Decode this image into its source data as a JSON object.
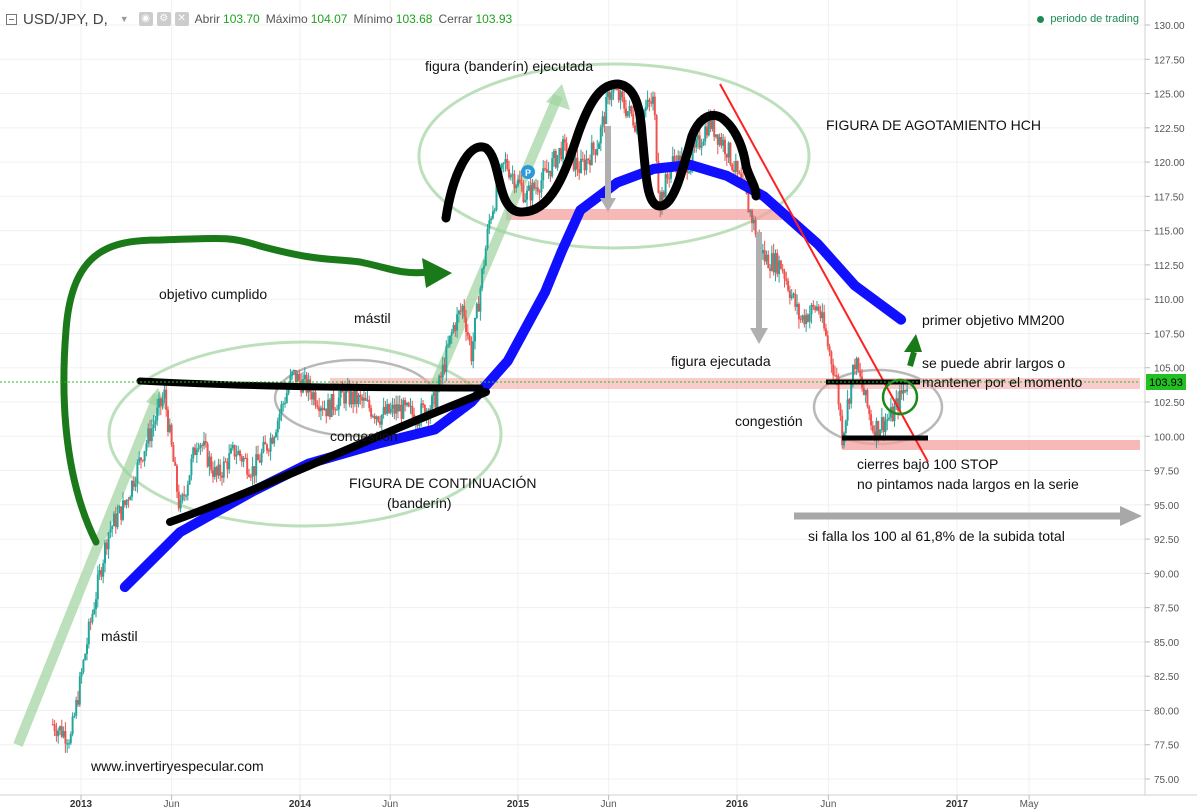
{
  "header": {
    "symbol": "USD/JPY, D,",
    "open_label": "Abrir",
    "open_value": "103.70",
    "high_label": "Máximo",
    "high_value": "104.07",
    "low_label": "Mínimo",
    "low_value": "103.68",
    "close_label": "Cerrar",
    "close_value": "103.93",
    "trading_status": "periodo de trading"
  },
  "colors": {
    "candle_up": "#26a69a",
    "candle_down": "#ef5350",
    "ma200": "#1010ff",
    "price_tag": "#22c022",
    "annotation_green": "#1a7a1a"
  },
  "chart_data": {
    "type": "candlestick",
    "title": "",
    "yaxis_side": "right",
    "ylim": [
      75,
      130
    ],
    "yticks": [
      "130.00",
      "127.50",
      "125.00",
      "122.50",
      "120.00",
      "117.50",
      "115.00",
      "112.50",
      "110.00",
      "107.50",
      "105.00",
      "102.50",
      "100.00",
      "97.50",
      "95.00",
      "92.50",
      "90.00",
      "87.50",
      "85.00",
      "82.50",
      "80.00",
      "77.50",
      "75.00"
    ],
    "xticks": [
      "2013",
      "Jun",
      "2014",
      "Jun",
      "2015",
      "Jun",
      "2016",
      "Jun",
      "2017",
      "May"
    ],
    "last_price": "103.93",
    "price_path": [
      {
        "date": "2012-11-15",
        "price": 79.0
      },
      {
        "date": "2012-12-15",
        "price": 78.0
      },
      {
        "date": "2013-01-15",
        "price": 86.0
      },
      {
        "date": "2013-02-15",
        "price": 93.0
      },
      {
        "date": "2013-03-15",
        "price": 95.0
      },
      {
        "date": "2013-04-15",
        "price": 99.0
      },
      {
        "date": "2013-05-20",
        "price": 103.0
      },
      {
        "date": "2013-06-15",
        "price": 94.5
      },
      {
        "date": "2013-07-15",
        "price": 100.0
      },
      {
        "date": "2013-08-15",
        "price": 97.0
      },
      {
        "date": "2013-09-15",
        "price": 99.0
      },
      {
        "date": "2013-10-15",
        "price": 97.5
      },
      {
        "date": "2013-11-15",
        "price": 100.0
      },
      {
        "date": "2013-12-20",
        "price": 104.5
      },
      {
        "date": "2014-01-15",
        "price": 103.5
      },
      {
        "date": "2014-02-15",
        "price": 102.0
      },
      {
        "date": "2014-03-15",
        "price": 103.0
      },
      {
        "date": "2014-04-15",
        "price": 102.5
      },
      {
        "date": "2014-05-15",
        "price": 101.5
      },
      {
        "date": "2014-06-15",
        "price": 102.0
      },
      {
        "date": "2014-07-15",
        "price": 101.5
      },
      {
        "date": "2014-08-15",
        "price": 102.5
      },
      {
        "date": "2014-09-15",
        "price": 108.0
      },
      {
        "date": "2014-10-01",
        "price": 109.5
      },
      {
        "date": "2014-10-15",
        "price": 106.0
      },
      {
        "date": "2014-11-15",
        "price": 116.0
      },
      {
        "date": "2014-12-10",
        "price": 120.0
      },
      {
        "date": "2015-01-15",
        "price": 117.5
      },
      {
        "date": "2015-02-15",
        "price": 119.0
      },
      {
        "date": "2015-03-15",
        "price": 121.0
      },
      {
        "date": "2015-04-15",
        "price": 119.5
      },
      {
        "date": "2015-05-15",
        "price": 121.5
      },
      {
        "date": "2015-06-05",
        "price": 125.5
      },
      {
        "date": "2015-07-15",
        "price": 123.0
      },
      {
        "date": "2015-08-15",
        "price": 124.5
      },
      {
        "date": "2015-08-25",
        "price": 117.0
      },
      {
        "date": "2015-09-15",
        "price": 120.0
      },
      {
        "date": "2015-10-15",
        "price": 120.0
      },
      {
        "date": "2015-11-15",
        "price": 123.0
      },
      {
        "date": "2015-12-15",
        "price": 121.0
      },
      {
        "date": "2016-01-15",
        "price": 117.5
      },
      {
        "date": "2016-02-15",
        "price": 113.0
      },
      {
        "date": "2016-03-15",
        "price": 112.5
      },
      {
        "date": "2016-04-15",
        "price": 108.5
      },
      {
        "date": "2016-05-15",
        "price": 109.5
      },
      {
        "date": "2016-06-15",
        "price": 104.0
      },
      {
        "date": "2016-06-24",
        "price": 100.0
      },
      {
        "date": "2016-07-15",
        "price": 105.5
      },
      {
        "date": "2016-08-15",
        "price": 100.5
      },
      {
        "date": "2016-09-15",
        "price": 101.5
      },
      {
        "date": "2016-10-10",
        "price": 103.93
      }
    ],
    "series": [
      {
        "values": [
          {
            "date": "2013-03-15",
            "price": 89.0
          },
          {
            "date": "2013-06-15",
            "price": 93.0
          },
          {
            "date": "2013-10-15",
            "price": 96.0
          },
          {
            "date": "2014-01-15",
            "price": 98.0
          },
          {
            "date": "2014-05-15",
            "price": 99.5
          },
          {
            "date": "2014-08-15",
            "price": 100.5
          },
          {
            "date": "2014-10-15",
            "price": 102.5
          },
          {
            "date": "2014-12-15",
            "price": 105.5
          },
          {
            "date": "2015-02-15",
            "price": 110.5
          },
          {
            "date": "2015-03-15",
            "price": 113.5
          },
          {
            "date": "2015-04-15",
            "price": 116.5
          },
          {
            "date": "2015-06-15",
            "price": 118.5
          },
          {
            "date": "2015-08-15",
            "price": 119.5
          },
          {
            "date": "2015-10-15",
            "price": 119.8
          },
          {
            "date": "2015-12-15",
            "price": 119.0
          },
          {
            "date": "2016-02-15",
            "price": 117.5
          },
          {
            "date": "2016-05-15",
            "price": 114.0
          },
          {
            "date": "2016-07-15",
            "price": 111.0
          },
          {
            "date": "2016-09-30",
            "price": 108.5
          }
        ]
      }
    ]
  },
  "annotations": {
    "figura_banderin_ejecutada": "figura (banderín) ejecutada",
    "figura_agotamiento": "FIGURA DE AGOTAMIENTO HCH",
    "objetivo_cumplido": "objetivo cumplido",
    "mastil_1": "mástil",
    "mastil_2": "mástil",
    "congestion_1": "congestion",
    "figura_continuacion_1": "FIGURA DE CONTINUACIÓN",
    "figura_continuacion_2": "(banderín)",
    "primer_objetivo": "primer objetivo MM200",
    "figura_ejecutada": "figura ejecutada",
    "abrir_largos_1": "se puede abrir largos o",
    "abrir_largos_2": "mantener por el momento",
    "congestion_2": "congestión",
    "cierres_1": "cierres bajo 100 STOP",
    "cierres_2": "no pintamos nada largos en la serie",
    "si_falla": "si falla los 100 al 61,8% de la subida total",
    "website": "www.invertiryespecular.com",
    "p_marker": "P"
  }
}
